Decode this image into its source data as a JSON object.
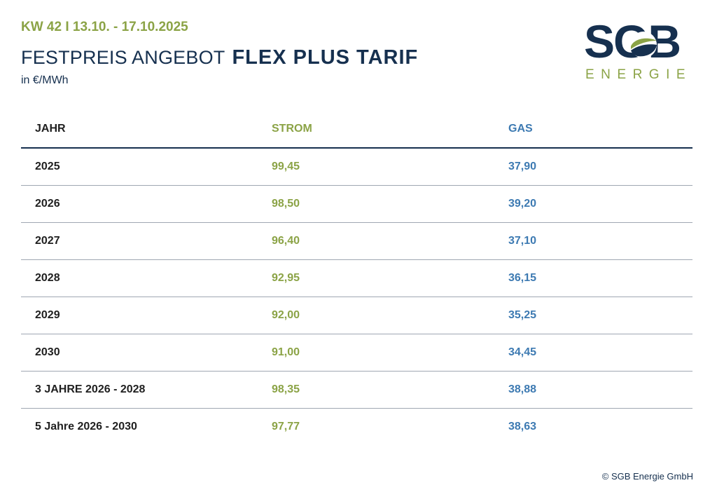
{
  "header": {
    "week": "KW 42 I 13.10. - 17.10.2025",
    "title_light": "FESTPREIS ANGEBOT",
    "title_bold": "FLEX PLUS TARIF",
    "unit": "in €/MWh"
  },
  "logo": {
    "letters": "SGB",
    "sub": "ENERGIE"
  },
  "table": {
    "columns": [
      "JAHR",
      "STROM",
      "GAS"
    ],
    "rows": [
      {
        "year": "2025",
        "strom": "99,45",
        "gas": "37,90"
      },
      {
        "year": "2026",
        "strom": "98,50",
        "gas": "39,20"
      },
      {
        "year": "2027",
        "strom": "96,40",
        "gas": "37,10"
      },
      {
        "year": "2028",
        "strom": "92,95",
        "gas": "36,15"
      },
      {
        "year": "2029",
        "strom": "92,00",
        "gas": "35,25"
      },
      {
        "year": "2030",
        "strom": "91,00",
        "gas": "34,45"
      },
      {
        "year": "3 JAHRE 2026 - 2028",
        "strom": "98,35",
        "gas": "38,88"
      },
      {
        "year": "5 Jahre 2026 - 2030",
        "strom": "97,77",
        "gas": "38,63"
      }
    ]
  },
  "footer": {
    "copyright": "© SGB Energie GmbH"
  },
  "colors": {
    "navy": "#16304f",
    "green": "#8ba346",
    "blue": "#3d7ab2"
  }
}
